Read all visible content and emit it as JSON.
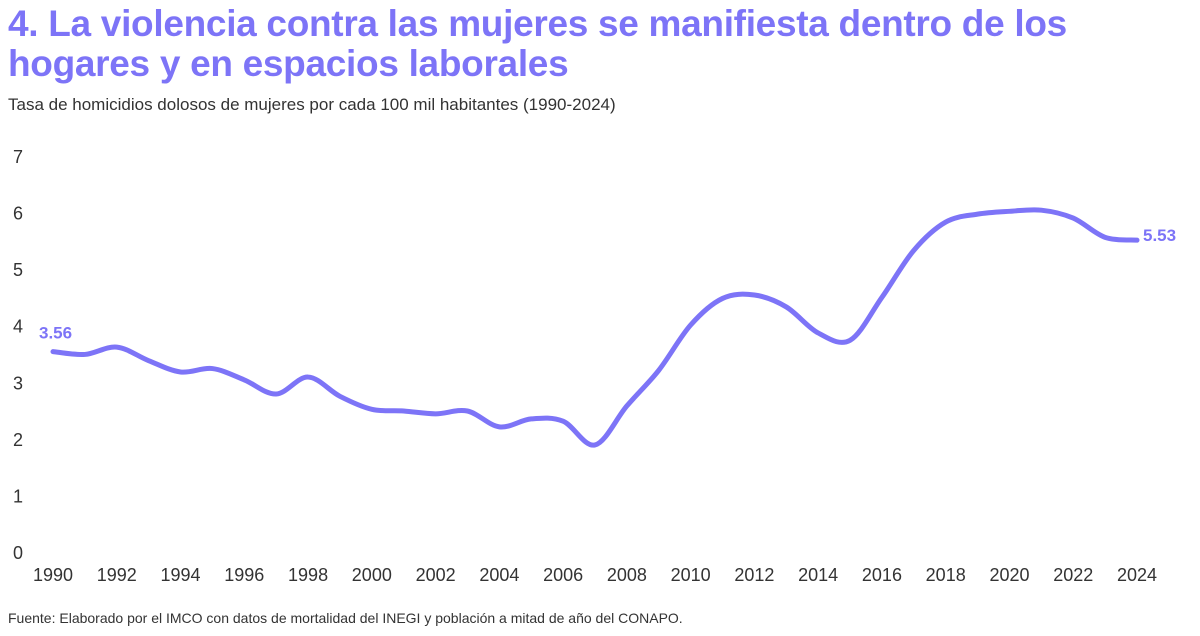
{
  "title": "4. La violencia contra las mujeres se manifiesta dentro de los hogares y en espacios laborales",
  "subtitle": "Tasa de homicidios dolosos de mujeres por cada 100 mil habitantes (1990-2024)",
  "source": "Fuente: Elaborado por el IMCO con datos de mortalidad del INEGI y población a mitad de año del CONAPO.",
  "colors": {
    "line": "#7d74f7",
    "title": "#7d74f7",
    "text": "#333333"
  },
  "chart_data": {
    "type": "line",
    "title": "4. La violencia contra las mujeres se manifiesta dentro de los hogares y en espacios laborales",
    "subtitle": "Tasa de homicidios dolosos de mujeres por cada 100 mil habitantes (1990-2024)",
    "xlabel": "",
    "ylabel": "",
    "x": [
      1990,
      1991,
      1992,
      1993,
      1994,
      1995,
      1996,
      1997,
      1998,
      1999,
      2000,
      2001,
      2002,
      2003,
      2004,
      2005,
      2006,
      2007,
      2008,
      2009,
      2010,
      2011,
      2012,
      2013,
      2014,
      2015,
      2016,
      2017,
      2018,
      2019,
      2020,
      2021,
      2022,
      2023,
      2024
    ],
    "series": [
      {
        "values": [
          3.56,
          3.51,
          3.64,
          3.4,
          3.2,
          3.26,
          3.06,
          2.81,
          3.11,
          2.77,
          2.54,
          2.51,
          2.46,
          2.51,
          2.23,
          2.37,
          2.33,
          1.91,
          2.6,
          3.23,
          4.03,
          4.5,
          4.56,
          4.35,
          3.89,
          3.76,
          4.52,
          5.35,
          5.85,
          5.99,
          6.04,
          6.06,
          5.92,
          5.58,
          5.53
        ]
      }
    ],
    "data_labels": [
      {
        "x": 1990,
        "text": "3.56"
      },
      {
        "x": 2024,
        "text": "5.53"
      }
    ],
    "xticks": [
      "1990",
      "1992",
      "1994",
      "1996",
      "1998",
      "2000",
      "2002",
      "2004",
      "2006",
      "2008",
      "2010",
      "2012",
      "2014",
      "2016",
      "2018",
      "2020",
      "2022",
      "2024"
    ],
    "yticks": [
      "0",
      "1",
      "2",
      "3",
      "4",
      "5",
      "6",
      "7"
    ],
    "xlim": [
      1990,
      2024
    ],
    "ylim": [
      0,
      7
    ],
    "grid": false,
    "legend": "none"
  }
}
